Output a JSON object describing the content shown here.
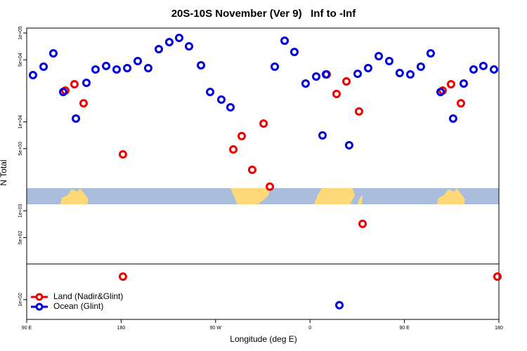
{
  "chart_data": {
    "type": "scatter",
    "title": "20S-10S November (Ver 9)   Inf to -Inf",
    "xlabel": "Longitude (deg E)",
    "ylabel": "N Total",
    "xlim": [
      90,
      540
    ],
    "xticks": [
      {
        "value": 90,
        "label": "90 E"
      },
      180,
      {
        "value": 270,
        "label": "90 W"
      },
      {
        "value": 360,
        "label": "0"
      },
      {
        "value": 450,
        "label": "90 E"
      },
      {
        "value": 540,
        "label": "180"
      }
    ],
    "ylim": [
      60,
      113600
    ],
    "yscale": "log",
    "yticks": [
      {
        "value": 100000,
        "label": "1e+05"
      },
      {
        "value": 50000,
        "label": "5e+04"
      },
      {
        "value": 10000,
        "label": "1e+04"
      },
      {
        "value": 5000,
        "label": "5e+03"
      },
      {
        "value": 1000,
        "label": "1e+03"
      },
      {
        "value": 500,
        "label": "5e+02"
      },
      {
        "value": 100,
        "label": "1e+02"
      }
    ],
    "legend": "lower left",
    "series": [
      {
        "name": "Land (Nadir&Glint)",
        "color": "#ee0000",
        "x": [
          126.8,
          135.5,
          144.2,
          181.7,
          286.9,
          294.9,
          304.9,
          315.7,
          321.7,
          375.9,
          385.3,
          394.7,
          406.7,
          410.1,
          486.4,
          494.4,
          503.8,
          181.7,
          538.6
        ],
        "values": [
          22500,
          26500,
          16200,
          4310,
          4900,
          6920,
          2890,
          9590,
          1870,
          34200,
          20600,
          28500,
          13100,
          713,
          22500,
          26500,
          16200,
          182,
          182
        ]
      },
      {
        "name": "Ocean (Glint)",
        "color": "#0000dd",
        "x": [
          96.0,
          106.1,
          115.4,
          124.8,
          136.9,
          146.9,
          155.6,
          165.7,
          175.7,
          185.8,
          195.8,
          205.8,
          215.9,
          225.9,
          235.3,
          244.7,
          256.1,
          264.8,
          275.5,
          284.2,
          326.4,
          335.8,
          345.1,
          355.8,
          365.9,
          371.9,
          375.2,
          388.0,
          397.3,
          405.4,
          415.4,
          425.5,
          435.5,
          445.5,
          455.6,
          465.6,
          475.0,
          484.4,
          496.4,
          506.5,
          515.9,
          525.2,
          535.3
        ],
        "values": [
          33600,
          41800,
          59000,
          21700,
          10900,
          27500,
          38900,
          42600,
          38900,
          40300,
          48300,
          40300,
          65800,
          78900,
          88100,
          70800,
          43300,
          21700,
          17800,
          14600,
          41800,
          81900,
          61200,
          27000,
          32400,
          7050,
          34200,
          86.7,
          5460,
          34800,
          40300,
          54900,
          48300,
          35500,
          34200,
          41800,
          59000,
          21700,
          10900,
          27000,
          38900,
          42600,
          38900
        ]
      }
    ]
  }
}
